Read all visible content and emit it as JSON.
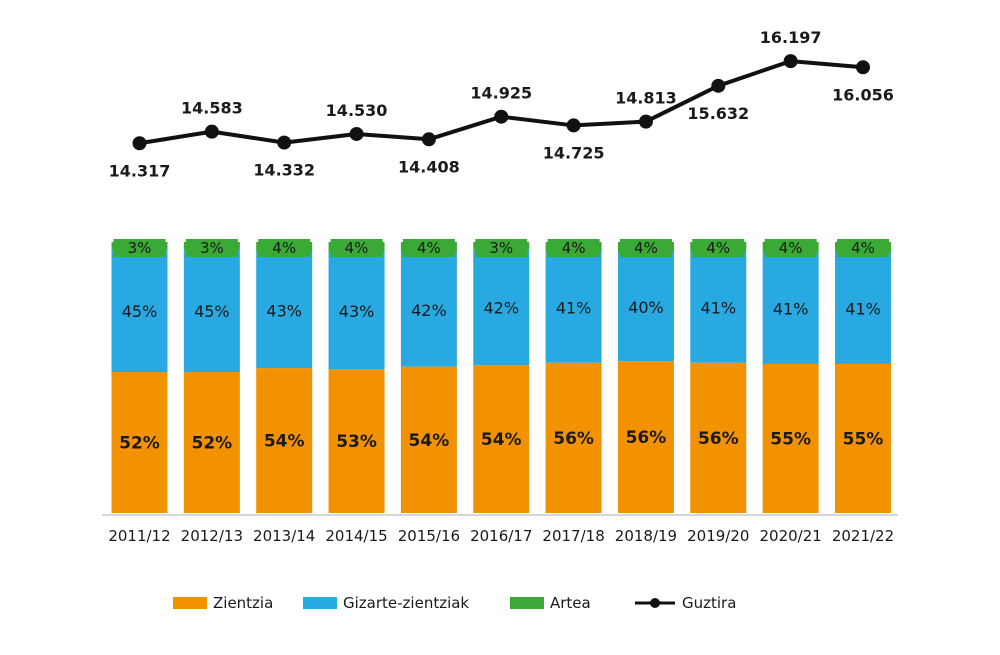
{
  "chart_data": {
    "type": "bar",
    "stacked": true,
    "categories": [
      "2011/12",
      "2012/13",
      "2013/14",
      "2014/15",
      "2015/16",
      "2016/17",
      "2017/18",
      "2018/19",
      "2019/20",
      "2020/21",
      "2021/22"
    ],
    "series": [
      {
        "name": "Zientzia",
        "color": "#F39200",
        "values": [
          52,
          52,
          54,
          53,
          54,
          54,
          56,
          56,
          56,
          55,
          55
        ],
        "labels": [
          "52%",
          "52%",
          "54%",
          "53%",
          "54%",
          "54%",
          "56%",
          "56%",
          "56%",
          "55%",
          "55%"
        ]
      },
      {
        "name": "Gizarte-zientziak",
        "color": "#29A9E1",
        "values": [
          45,
          45,
          43,
          43,
          42,
          42,
          41,
          40,
          41,
          41,
          41
        ],
        "labels": [
          "45%",
          "45%",
          "43%",
          "43%",
          "42%",
          "42%",
          "41%",
          "40%",
          "41%",
          "41%",
          "41%"
        ]
      },
      {
        "name": "Artea",
        "color": "#3BA935",
        "values": [
          3,
          3,
          4,
          4,
          4,
          3,
          4,
          4,
          4,
          4,
          4
        ],
        "labels": [
          "3%",
          "3%",
          "4%",
          "4%",
          "4%",
          "3%",
          "4%",
          "4%",
          "4%",
          "4%",
          "4%"
        ]
      }
    ],
    "line": {
      "name": "Guztira",
      "color": "#111111",
      "values": [
        14317,
        14583,
        14332,
        14530,
        14408,
        14925,
        14725,
        14813,
        15632,
        16197,
        16056
      ],
      "labels": [
        "14.317",
        "14.583",
        "14.332",
        "14.530",
        "14.408",
        "14.925",
        "14.725",
        "14.813",
        "15.632",
        "16.197",
        "16.056"
      ],
      "label_positions": [
        "below",
        "above",
        "below",
        "above",
        "below",
        "above",
        "below",
        "above",
        "below",
        "above",
        "below"
      ]
    },
    "legend": {
      "position": "bottom"
    },
    "grid": false
  }
}
